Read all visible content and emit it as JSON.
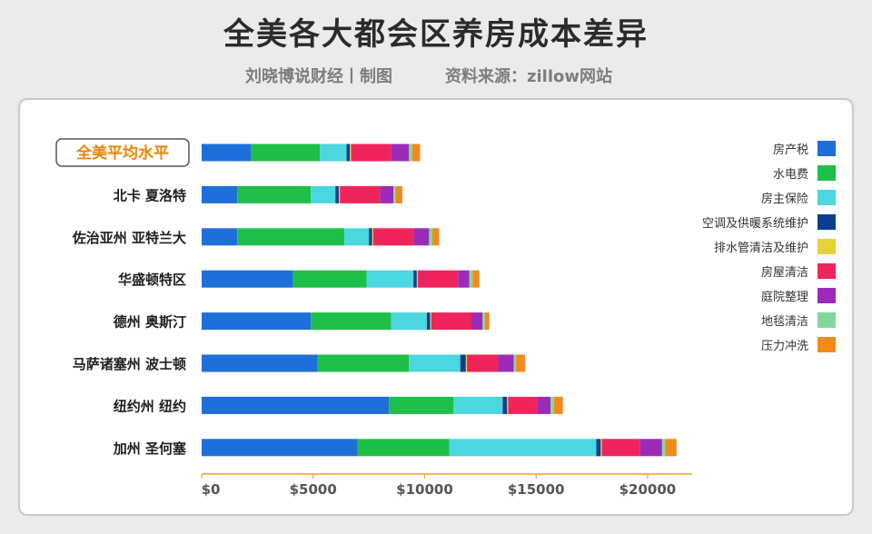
{
  "title": "全美各大都会区养房成本差异",
  "subtitle_left": "刘晓博说财经丨制图",
  "subtitle_right": "资料来源：zillow网站",
  "chart_data": {
    "type": "stacked-bar-horizontal",
    "categories": [
      "全美平均水平",
      "北卡 夏洛特",
      "佐治亚州 亚特兰大",
      "华盛顿特区",
      "德州 奥斯汀",
      "马萨诸塞州 波士顿",
      "纽约州 纽约",
      "加州 圣何塞"
    ],
    "highlight_category": "全美平均水平",
    "series": [
      {
        "name": "房产税",
        "color": "#1e6fd9",
        "values": [
          2200,
          1600,
          1600,
          4100,
          4900,
          5200,
          8400,
          7000
        ]
      },
      {
        "name": "水电费",
        "color": "#1dbf49",
        "values": [
          3100,
          3300,
          4800,
          3300,
          3600,
          4100,
          2900,
          4100
        ]
      },
      {
        "name": "房主保险",
        "color": "#4bd6e0",
        "values": [
          1200,
          1100,
          1100,
          2100,
          1600,
          2300,
          2200,
          6600
        ]
      },
      {
        "name": "空调及供暖系统维护",
        "color": "#0d3f8f",
        "values": [
          150,
          150,
          150,
          150,
          150,
          250,
          200,
          200
        ]
      },
      {
        "name": "排水管清洁及维护",
        "color": "#e8d23a",
        "values": [
          50,
          50,
          50,
          50,
          50,
          50,
          50,
          50
        ]
      },
      {
        "name": "房屋清洁",
        "color": "#f0245c",
        "values": [
          1800,
          1800,
          1800,
          1800,
          1800,
          1400,
          1300,
          1700
        ]
      },
      {
        "name": "庭院整理",
        "color": "#9b2bb8",
        "values": [
          800,
          600,
          700,
          500,
          500,
          700,
          600,
          1000
        ]
      },
      {
        "name": "地毯清洁",
        "color": "#7fd99e",
        "values": [
          150,
          100,
          150,
          150,
          100,
          100,
          150,
          150
        ]
      },
      {
        "name": "压力冲洗",
        "color": "#f18a1b",
        "values": [
          350,
          300,
          300,
          300,
          200,
          400,
          400,
          500
        ]
      }
    ],
    "x_ticks": [
      "$0",
      "$5000",
      "$10000",
      "$15000",
      "$20000"
    ],
    "xlim": [
      0,
      22000
    ],
    "legend_position": "right"
  }
}
